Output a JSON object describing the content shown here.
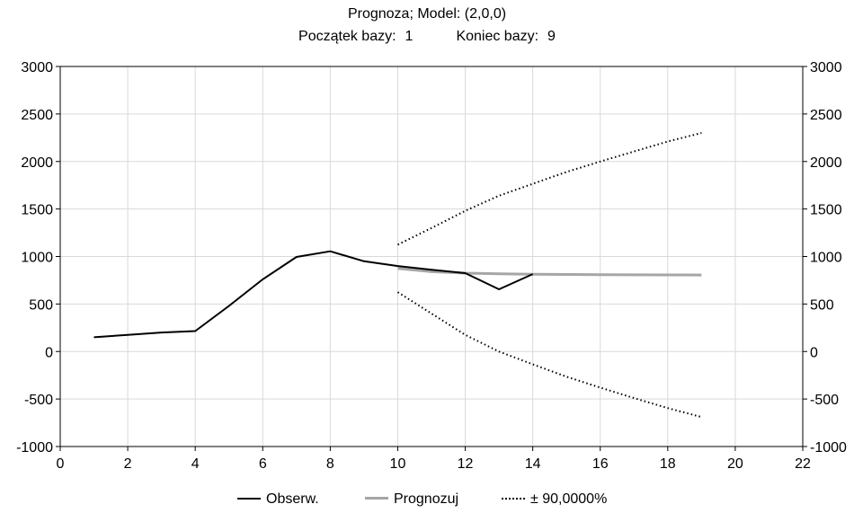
{
  "chart_data": {
    "type": "line",
    "title": "Prognoza; Model: (2,0,0)",
    "subtitle": {
      "start_label": "Początek bazy:",
      "start_value": "1",
      "end_label": "Koniec bazy:",
      "end_value": "9"
    },
    "xlabel": "",
    "ylabel": "",
    "xlim": [
      0,
      22
    ],
    "ylim": [
      -1000,
      3000
    ],
    "xticks": [
      0,
      2,
      4,
      6,
      8,
      10,
      12,
      14,
      16,
      18,
      20,
      22
    ],
    "yticks": [
      -1000,
      -500,
      0,
      500,
      1000,
      1500,
      2000,
      2500,
      3000
    ],
    "grid": true,
    "legend_position": "bottom",
    "series": [
      {
        "name": "Obserw.",
        "color": "#000000",
        "style": "solid",
        "x": [
          1,
          2,
          3,
          4,
          5,
          6,
          7,
          8,
          9,
          10,
          11,
          12,
          13,
          14
        ],
        "y": [
          150,
          175,
          200,
          215,
          480,
          760,
          995,
          1055,
          950,
          900,
          860,
          825,
          655,
          815
        ]
      },
      {
        "name": "Prognozuj",
        "color": "#a6a6a6",
        "style": "solid",
        "x": [
          10,
          11,
          12,
          13,
          14,
          15,
          16,
          17,
          18,
          19
        ],
        "y": [
          875,
          840,
          825,
          818,
          814,
          811,
          809,
          807,
          806,
          805
        ]
      },
      {
        "name": "± 90,0000%",
        "color": "#000000",
        "style": "dotted",
        "x": [
          10,
          11,
          12,
          13,
          14,
          15,
          16,
          17,
          18,
          19
        ],
        "y": [
          1125,
          1300,
          1480,
          1640,
          1765,
          1890,
          2000,
          2105,
          2210,
          2300
        ],
        "y_lower": [
          625,
          400,
          175,
          0,
          -135,
          -265,
          -380,
          -490,
          -595,
          -690
        ]
      }
    ]
  }
}
